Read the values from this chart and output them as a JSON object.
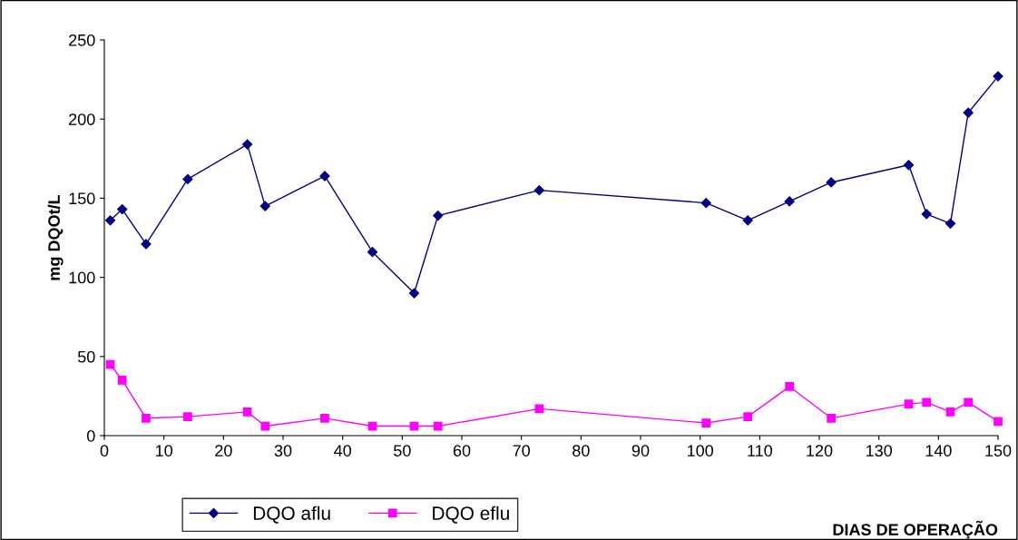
{
  "chart_data": {
    "type": "line",
    "xlabel": "DIAS DE OPERAÇÃO",
    "ylabel": "mg DQOt/L",
    "x": [
      1,
      3,
      7,
      14,
      24,
      27,
      37,
      45,
      52,
      56,
      73,
      101,
      108,
      115,
      122,
      135,
      138,
      142,
      145,
      150
    ],
    "series": [
      {
        "name": "DQO aflu",
        "color": "#000080",
        "marker": "diamond",
        "values": [
          136,
          143,
          121,
          162,
          184,
          145,
          164,
          116,
          90,
          139,
          155,
          147,
          136,
          148,
          160,
          171,
          140,
          134,
          204,
          227
        ]
      },
      {
        "name": "DQO eflu",
        "color": "#ff00ff",
        "marker": "square",
        "values": [
          45,
          35,
          11,
          12,
          15,
          6,
          11,
          6,
          6,
          6,
          17,
          8,
          12,
          31,
          11,
          20,
          21,
          15,
          21,
          9
        ]
      }
    ],
    "xlim": [
      0,
      150
    ],
    "xticks": [
      0,
      10,
      20,
      30,
      40,
      50,
      60,
      70,
      80,
      90,
      100,
      110,
      120,
      130,
      140,
      150
    ],
    "ylim": [
      0,
      250
    ],
    "yticks": [
      0,
      50,
      100,
      150,
      200,
      250
    ],
    "grid": false,
    "legend": "bottom",
    "line_style": "solid"
  }
}
